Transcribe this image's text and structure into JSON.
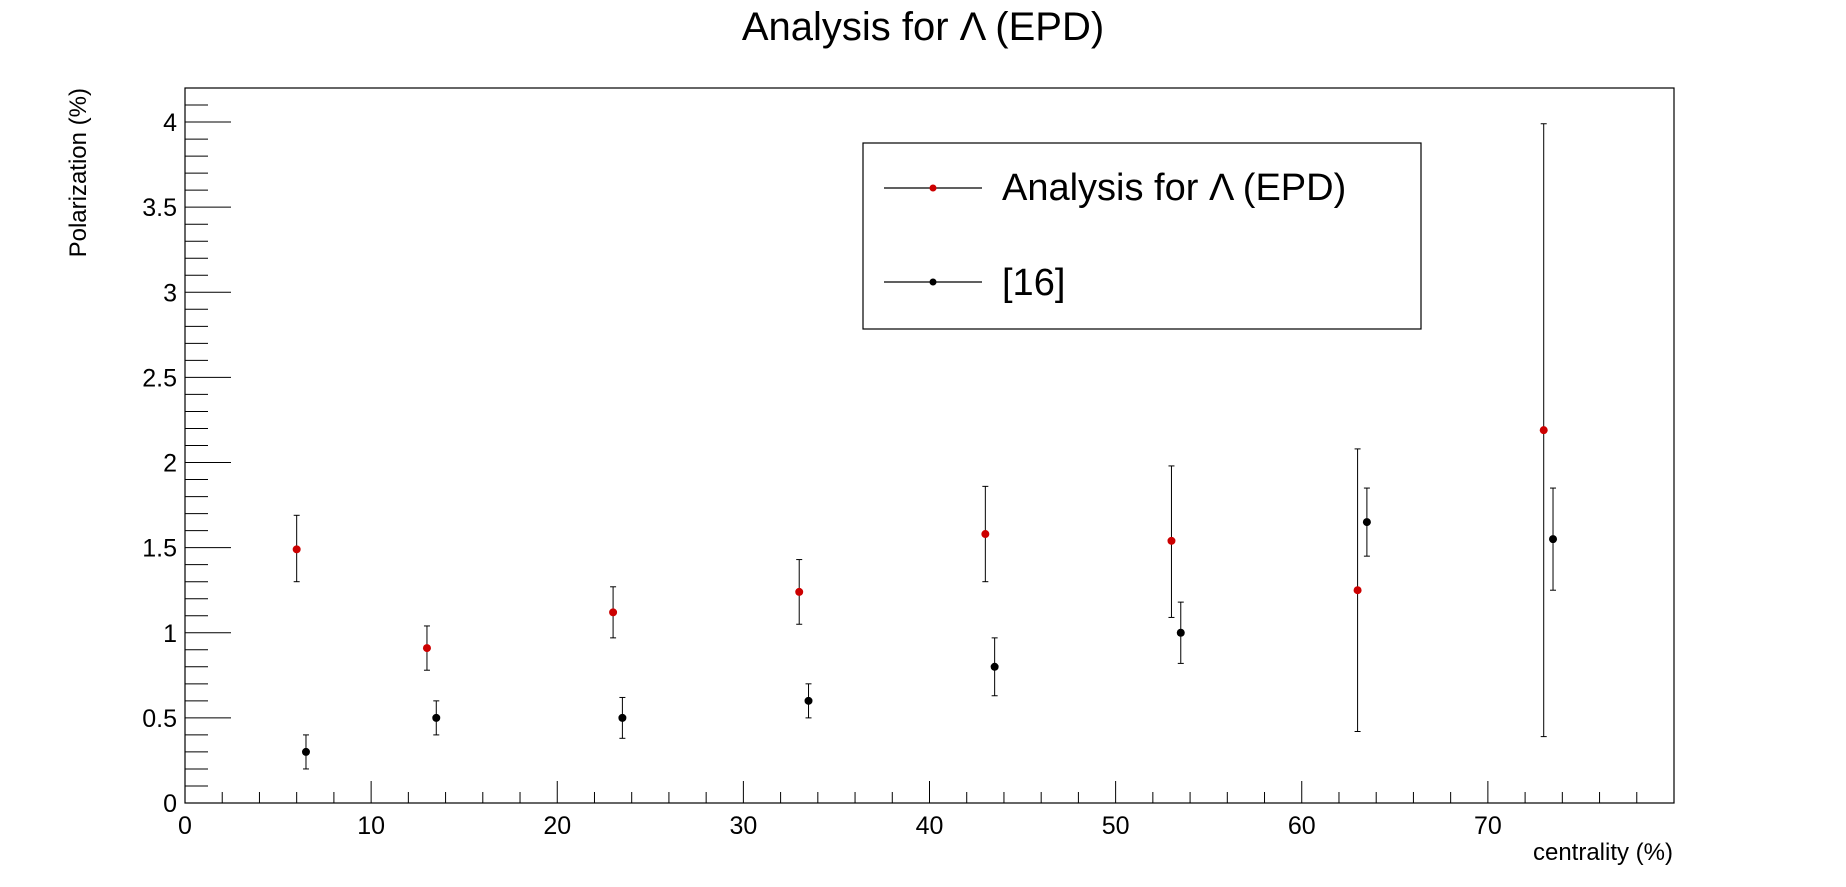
{
  "chart_data": {
    "type": "scatter",
    "title": "Analysis for Λ  (EPD)",
    "xlabel": "centrality (%)",
    "ylabel": "Polarization (%)",
    "xlim": [
      0,
      80
    ],
    "ylim": [
      0,
      4.2
    ],
    "x_ticks": [
      "0",
      "10",
      "20",
      "30",
      "40",
      "50",
      "60",
      "70"
    ],
    "y_ticks": [
      "0",
      "0.5",
      "1",
      "1.5",
      "2",
      "2.5",
      "3",
      "3.5",
      "4"
    ],
    "grid": false,
    "legend_position": "top-right",
    "series": [
      {
        "name": "Analysis for Λ  (EPD)",
        "color": "#cc0000",
        "points": [
          {
            "x": 6,
            "y": 1.49,
            "err_low": 0.19,
            "err_high": 0.2
          },
          {
            "x": 13,
            "y": 0.91,
            "err_low": 0.13,
            "err_high": 0.13
          },
          {
            "x": 23,
            "y": 1.12,
            "err_low": 0.15,
            "err_high": 0.15
          },
          {
            "x": 33,
            "y": 1.24,
            "err_low": 0.19,
            "err_high": 0.19
          },
          {
            "x": 43,
            "y": 1.58,
            "err_low": 0.28,
            "err_high": 0.28
          },
          {
            "x": 53,
            "y": 1.54,
            "err_low": 0.45,
            "err_high": 0.44
          },
          {
            "x": 63,
            "y": 1.25,
            "err_low": 0.83,
            "err_high": 0.83
          },
          {
            "x": 73,
            "y": 2.19,
            "err_low": 1.8,
            "err_high": 1.8
          }
        ]
      },
      {
        "name": "[16]",
        "color": "#000000",
        "points": [
          {
            "x": 6.5,
            "y": 0.3,
            "err_low": 0.1,
            "err_high": 0.1
          },
          {
            "x": 13.5,
            "y": 0.5,
            "err_low": 0.1,
            "err_high": 0.1
          },
          {
            "x": 23.5,
            "y": 0.5,
            "err_low": 0.12,
            "err_high": 0.12
          },
          {
            "x": 33.5,
            "y": 0.6,
            "err_low": 0.1,
            "err_high": 0.1
          },
          {
            "x": 43.5,
            "y": 0.8,
            "err_low": 0.17,
            "err_high": 0.17
          },
          {
            "x": 53.5,
            "y": 1.0,
            "err_low": 0.18,
            "err_high": 0.18
          },
          {
            "x": 63.5,
            "y": 1.65,
            "err_low": 0.2,
            "err_high": 0.2
          },
          {
            "x": 73.5,
            "y": 1.55,
            "err_low": 0.3,
            "err_high": 0.3
          }
        ]
      }
    ]
  }
}
